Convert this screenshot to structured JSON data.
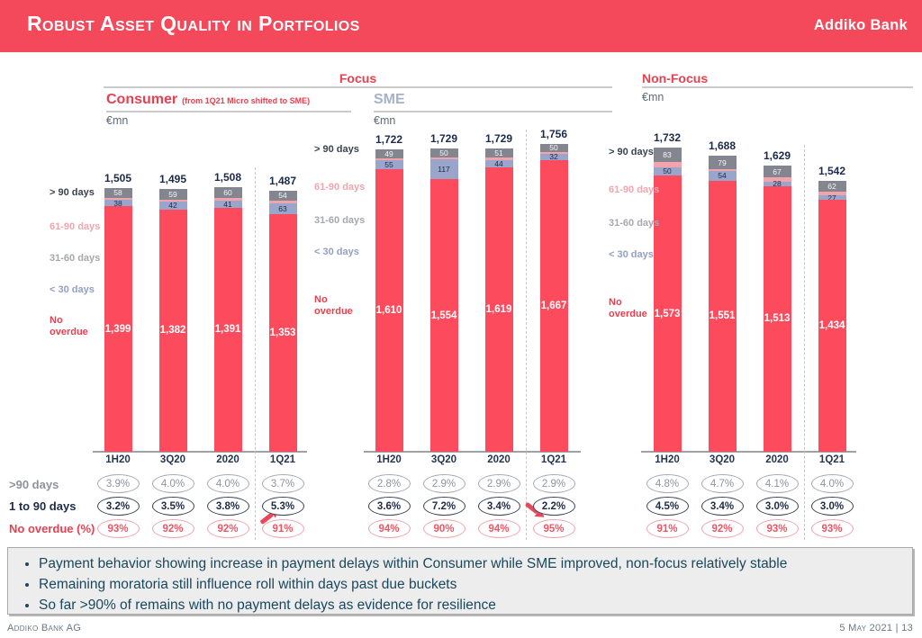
{
  "colors": {
    "banner_red": "#F4495A",
    "bar_red": "#FB4B5C",
    "bar_gray": "#84868F",
    "bar_blue": "#9AA5CB",
    "bar_pink": "#F2A3AB",
    "navy_text": "#1B2A4A",
    "accent_red": "#E8404F"
  },
  "header": {
    "title": "Robust Asset Quality in Portfolios",
    "logo": "Addiko Bank"
  },
  "sections": {
    "focus": "Focus",
    "non_focus": "Non-Focus"
  },
  "legend_labels": [
    {
      "text": "> 90 days",
      "color": "#3B4250"
    },
    {
      "text": "61-90 days",
      "color": "#F2A5AD"
    },
    {
      "text": "31-60 days",
      "color": "#A6A8AE"
    },
    {
      "text": "< 30 days",
      "color": "#93A0C4"
    },
    {
      "text": "No overdue",
      "color": "#E8404F"
    }
  ],
  "chart_data": [
    {
      "type": "bar",
      "stacked": true,
      "name": "Consumer",
      "title": "Consumer",
      "subtitle": "(from 1Q21 Micro shifted to SME)",
      "unit": "€mn",
      "categories": [
        "1H20",
        "3Q20",
        "2020",
        "1Q21"
      ],
      "totals": [
        1505,
        1495,
        1508,
        1487
      ],
      "series": [
        {
          "name": "> 90 days",
          "color": "#84868F",
          "values": [
            58,
            59,
            60,
            54
          ]
        },
        {
          "name": "< 30 days",
          "color": "#9AA5CB",
          "values": [
            38,
            42,
            41,
            63
          ]
        },
        {
          "name": "No overdue",
          "color": "#FB4B5C",
          "values": [
            1399,
            1382,
            1391,
            1353
          ]
        }
      ]
    },
    {
      "type": "bar",
      "stacked": true,
      "name": "SME",
      "title": "SME",
      "unit": "€mn",
      "categories": [
        "1H20",
        "3Q20",
        "2020",
        "1Q21"
      ],
      "totals": [
        1722,
        1729,
        1729,
        1756
      ],
      "series": [
        {
          "name": "> 90 days",
          "color": "#84868F",
          "values": [
            49,
            50,
            51,
            50
          ]
        },
        {
          "name": "< 30 days",
          "color": "#9AA5CB",
          "values": [
            55,
            117,
            44,
            32
          ]
        },
        {
          "name": "No overdue",
          "color": "#FB4B5C",
          "values": [
            1610,
            1554,
            1619,
            1667
          ]
        }
      ]
    },
    {
      "type": "bar",
      "stacked": true,
      "name": "Non-Focus",
      "unit": "€mn",
      "categories": [
        "1H20",
        "3Q20",
        "2020",
        "1Q21"
      ],
      "totals": [
        1732,
        1688,
        1629,
        1542
      ],
      "series": [
        {
          "name": "> 90 days",
          "color": "#84868F",
          "values": [
            83,
            79,
            67,
            62
          ]
        },
        {
          "name": "< 30 days",
          "color": "#9AA5CB",
          "values": [
            50,
            54,
            28,
            27
          ]
        },
        {
          "name": "No overdue",
          "color": "#FB4B5C",
          "values": [
            1573,
            1551,
            1513,
            1434
          ]
        }
      ]
    }
  ],
  "table": {
    "rows": [
      {
        "label": ">90 days",
        "style": "gray",
        "values": [
          "3.9%",
          "4.0%",
          "4.0%",
          "3.7%",
          "2.8%",
          "2.9%",
          "2.9%",
          "2.9%",
          "4.8%",
          "4.7%",
          "4.1%",
          "4.0%"
        ]
      },
      {
        "label": "1 to 90 days",
        "style": "navy",
        "values": [
          "3.2%",
          "3.5%",
          "3.8%",
          "5.3%",
          "3.6%",
          "7.2%",
          "3.4%",
          "2.2%",
          "4.5%",
          "3.4%",
          "3.0%",
          "3.0%"
        ]
      },
      {
        "label": "No overdue (%)",
        "style": "red",
        "values": [
          "93%",
          "92%",
          "92%",
          "91%",
          "94%",
          "90%",
          "94%",
          "95%",
          "91%",
          "92%",
          "93%",
          "93%"
        ]
      }
    ],
    "annotations": [
      {
        "at": "Consumer 1Q21",
        "direction": "up-right"
      },
      {
        "at": "SME 1Q21",
        "direction": "down-right"
      }
    ]
  },
  "bullets": [
    "Payment behavior showing increase in payment delays within Consumer while SME improved, non-focus relatively stable",
    "Remaining moratoria still influence roll within days past due buckets",
    "So far >90% of remains with no payment delays as evidence for resilience"
  ],
  "footer": {
    "left": "Addiko Bank AG",
    "right": "5 May 2021 | 13"
  }
}
